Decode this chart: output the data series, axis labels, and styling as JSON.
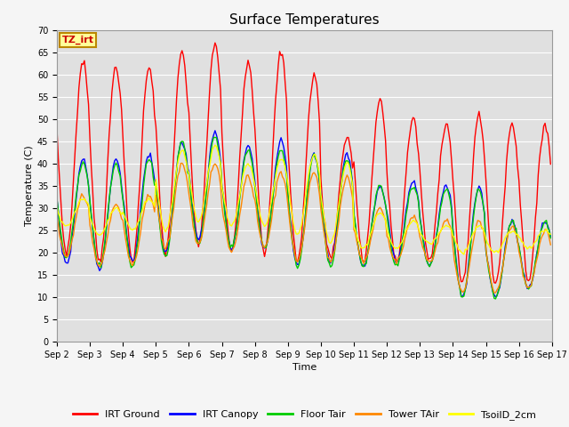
{
  "title": "Surface Temperatures",
  "xlabel": "Time",
  "ylabel": "Temperature (C)",
  "ylim": [
    0,
    70
  ],
  "yticks": [
    0,
    5,
    10,
    15,
    20,
    25,
    30,
    35,
    40,
    45,
    50,
    55,
    60,
    65,
    70
  ],
  "series": {
    "IRT Ground": {
      "color": "#ff0000",
      "lw": 1.0
    },
    "IRT Canopy": {
      "color": "#0000ff",
      "lw": 1.0
    },
    "Floor Tair": {
      "color": "#00cc00",
      "lw": 1.0
    },
    "Tower TAir": {
      "color": "#ff8800",
      "lw": 1.0
    },
    "TsoilD_2cm": {
      "color": "#ffff00",
      "lw": 1.0
    }
  },
  "xtick_labels": [
    "Sep 2",
    "Sep 3",
    "Sep 4",
    "Sep 5",
    "Sep 6",
    "Sep 7",
    "Sep 8",
    "Sep 9",
    "Sep 10",
    "Sep 11",
    "Sep 12",
    "Sep 13",
    "Sep 14",
    "Sep 15",
    "Sep 16",
    "Sep 17"
  ],
  "annotation_text": "TZ_irt",
  "annotation_color": "#cc0000",
  "annotation_bg": "#ffff99",
  "annotation_border": "#bb8800",
  "plot_bg_color": "#e0e0e0",
  "fig_bg_color": "#f5f5f5",
  "grid_color": "#ffffff",
  "title_fontsize": 11,
  "axis_label_fontsize": 8,
  "tick_fontsize": 7,
  "legend_fontsize": 8
}
